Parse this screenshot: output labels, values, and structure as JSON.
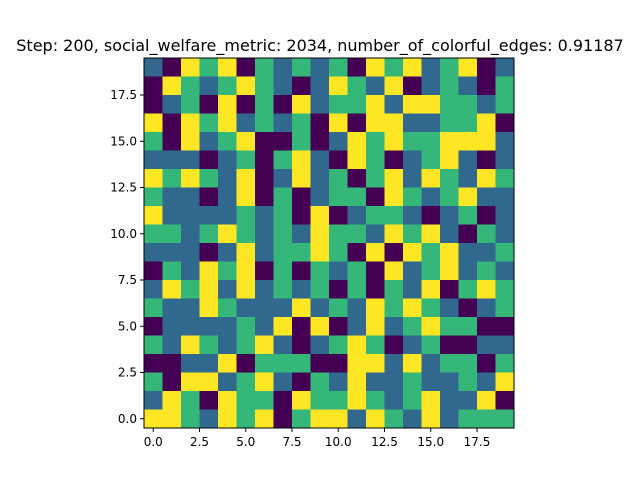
{
  "chart_data": {
    "type": "heatmap",
    "title": "Step: 200, social_welfare_metric: 2034, number_of_colorful_edges: 0.91187",
    "xlabel": "",
    "ylabel": "",
    "grid": false,
    "xlim": [
      -0.5,
      19.5
    ],
    "ylim": [
      19.5,
      -0.5
    ],
    "xticks": [
      0.0,
      2.5,
      5.0,
      7.5,
      10.0,
      12.5,
      15.0,
      17.5
    ],
    "xtick_labels": [
      "0.0",
      "2.5",
      "5.0",
      "7.5",
      "10.0",
      "12.5",
      "15.0",
      "17.5"
    ],
    "yticks": [
      0.0,
      2.5,
      5.0,
      7.5,
      10.0,
      12.5,
      15.0,
      17.5
    ],
    "ytick_labels": [
      "0.0",
      "2.5",
      "5.0",
      "7.5",
      "10.0",
      "12.5",
      "15.0",
      "17.5"
    ],
    "colormap": "viridis",
    "palette": [
      "#440154",
      "#31688e",
      "#35b779",
      "#fde725"
    ],
    "values": [
      [
        1,
        0,
        3,
        2,
        3,
        0,
        2,
        1,
        2,
        1,
        2,
        0,
        3,
        2,
        3,
        1,
        2,
        3,
        0,
        1
      ],
      [
        0,
        3,
        2,
        1,
        2,
        3,
        2,
        1,
        0,
        1,
        3,
        2,
        1,
        3,
        0,
        1,
        2,
        1,
        0,
        2
      ],
      [
        0,
        1,
        2,
        0,
        3,
        0,
        2,
        0,
        3,
        1,
        2,
        2,
        3,
        1,
        3,
        3,
        2,
        2,
        1,
        2
      ],
      [
        3,
        0,
        3,
        2,
        3,
        1,
        2,
        1,
        2,
        0,
        3,
        0,
        3,
        3,
        1,
        1,
        2,
        2,
        3,
        0
      ],
      [
        2,
        0,
        3,
        1,
        2,
        3,
        0,
        0,
        2,
        0,
        1,
        3,
        2,
        3,
        2,
        2,
        3,
        3,
        3,
        1
      ],
      [
        1,
        1,
        1,
        0,
        1,
        2,
        0,
        2,
        3,
        1,
        0,
        3,
        2,
        0,
        1,
        2,
        3,
        1,
        0,
        1
      ],
      [
        3,
        2,
        3,
        2,
        1,
        3,
        0,
        1,
        3,
        1,
        2,
        0,
        2,
        3,
        1,
        3,
        2,
        1,
        3,
        2
      ],
      [
        2,
        1,
        1,
        0,
        1,
        3,
        0,
        2,
        0,
        1,
        2,
        2,
        0,
        3,
        2,
        1,
        2,
        3,
        1,
        1
      ],
      [
        3,
        1,
        1,
        1,
        1,
        2,
        1,
        2,
        0,
        3,
        0,
        1,
        2,
        2,
        1,
        0,
        1,
        2,
        0,
        1
      ],
      [
        2,
        2,
        1,
        2,
        3,
        2,
        1,
        2,
        1,
        3,
        2,
        2,
        1,
        3,
        2,
        3,
        1,
        0,
        2,
        1
      ],
      [
        1,
        1,
        1,
        0,
        1,
        3,
        1,
        2,
        2,
        3,
        2,
        0,
        3,
        0,
        3,
        2,
        3,
        1,
        1,
        2
      ],
      [
        0,
        2,
        1,
        3,
        2,
        3,
        0,
        2,
        0,
        2,
        1,
        2,
        0,
        3,
        1,
        2,
        3,
        1,
        2,
        1
      ],
      [
        1,
        3,
        2,
        3,
        1,
        3,
        1,
        2,
        1,
        2,
        0,
        2,
        0,
        2,
        1,
        3,
        0,
        2,
        3,
        2
      ],
      [
        2,
        1,
        1,
        3,
        2,
        1,
        1,
        1,
        3,
        1,
        2,
        1,
        3,
        2,
        3,
        2,
        1,
        0,
        1,
        2
      ],
      [
        0,
        1,
        1,
        1,
        1,
        2,
        1,
        3,
        0,
        3,
        0,
        1,
        3,
        1,
        2,
        3,
        2,
        2,
        0,
        0
      ],
      [
        2,
        1,
        3,
        2,
        1,
        2,
        3,
        1,
        0,
        1,
        2,
        3,
        2,
        0,
        1,
        2,
        0,
        0,
        1,
        1
      ],
      [
        0,
        0,
        1,
        1,
        3,
        0,
        2,
        2,
        2,
        0,
        0,
        3,
        3,
        1,
        3,
        1,
        2,
        2,
        0,
        2
      ],
      [
        2,
        0,
        3,
        3,
        1,
        2,
        3,
        1,
        0,
        2,
        1,
        3,
        1,
        1,
        2,
        1,
        1,
        2,
        1,
        3
      ],
      [
        1,
        3,
        2,
        0,
        3,
        2,
        2,
        0,
        3,
        2,
        2,
        3,
        2,
        1,
        2,
        3,
        1,
        1,
        3,
        0
      ],
      [
        3,
        3,
        2,
        1,
        3,
        2,
        3,
        0,
        2,
        3,
        3,
        1,
        3,
        2,
        1,
        3,
        1,
        2,
        2,
        2
      ]
    ]
  }
}
